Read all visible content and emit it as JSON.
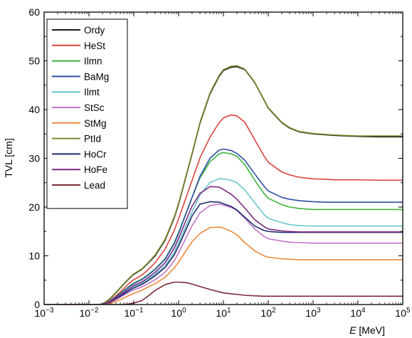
{
  "chart_data": {
    "type": "line",
    "xlabel_italic": "E",
    "xlabel_unit": " [MeV]",
    "ylabel": "TVL [cm]",
    "xscale": "log",
    "xlim": [
      0.001,
      100000
    ],
    "ylim": [
      0,
      60
    ],
    "yticks": [
      0,
      10,
      20,
      30,
      40,
      50,
      60
    ],
    "xtick_labels": [
      {
        "base": "10",
        "exp": "−3"
      },
      {
        "base": "10",
        "exp": "−2"
      },
      {
        "base": "10",
        "exp": "−1"
      },
      {
        "base": "10",
        "exp": "0"
      },
      {
        "base": "10",
        "exp": "1"
      },
      {
        "base": "10",
        "exp": "2"
      },
      {
        "base": "10",
        "exp": "3"
      },
      {
        "base": "10",
        "exp": "4"
      },
      {
        "base": "10",
        "exp": "5"
      }
    ],
    "grid": false,
    "legend_position": "top-left",
    "x": [
      0.001,
      0.0015,
      0.003,
      0.006,
      0.01,
      0.015,
      0.02,
      0.03,
      0.05,
      0.08,
      0.1,
      0.15,
      0.2,
      0.3,
      0.5,
      0.8,
      1,
      1.5,
      2,
      3,
      5,
      8,
      10,
      15,
      20,
      30,
      50,
      80,
      100,
      200,
      300,
      500,
      1000,
      2000,
      3000,
      5000,
      10000,
      30000,
      100000
    ],
    "series": [
      {
        "name": "Ordy",
        "color": "#1a1a1a",
        "values": [
          0,
          0,
          0,
          0,
          0,
          0,
          0.1,
          1.2,
          3.4,
          5.4,
          6.2,
          7.2,
          8.3,
          10.0,
          13.2,
          17.8,
          20.6,
          26.6,
          30.9,
          37.2,
          43.2,
          46.8,
          48.0,
          48.7,
          48.8,
          48.2,
          45.5,
          42.0,
          40.3,
          37.3,
          36.2,
          35.4,
          35.0,
          34.8,
          34.7,
          34.6,
          34.5,
          34.4,
          34.4
        ]
      },
      {
        "name": "HeSt",
        "color": "#d9443e",
        "values": [
          0,
          0,
          0,
          0,
          0,
          0,
          0,
          0.8,
          2.6,
          4.4,
          5.1,
          6.0,
          7.0,
          8.6,
          11.4,
          15.2,
          17.6,
          22.2,
          25.5,
          30.1,
          34.3,
          37.3,
          38.3,
          38.9,
          38.7,
          37.4,
          33.8,
          30.5,
          29.2,
          27.2,
          26.6,
          26.1,
          25.8,
          25.7,
          25.6,
          25.6,
          25.6,
          25.5,
          25.5
        ]
      },
      {
        "name": "Ilmn",
        "color": "#3db23d",
        "values": [
          0,
          0,
          0,
          0,
          0,
          0,
          0,
          0.7,
          2.3,
          3.8,
          4.4,
          5.2,
          6.0,
          7.3,
          9.4,
          12.7,
          14.8,
          19.0,
          22.0,
          26.0,
          29.3,
          30.9,
          31.2,
          30.9,
          30.4,
          28.7,
          25.5,
          22.8,
          21.8,
          20.5,
          20.0,
          19.7,
          19.5,
          19.5,
          19.5,
          19.5,
          19.5,
          19.5,
          19.5
        ]
      },
      {
        "name": "BaMg",
        "color": "#2f4fa0",
        "values": [
          0,
          0,
          0,
          0,
          0,
          0,
          0,
          0.7,
          2.2,
          3.7,
          4.3,
          5.1,
          5.9,
          7.2,
          9.3,
          12.5,
          14.6,
          18.9,
          22.0,
          26.3,
          30.0,
          31.7,
          31.9,
          31.6,
          31.0,
          29.6,
          26.8,
          24.3,
          23.3,
          22.0,
          21.6,
          21.3,
          21.1,
          21.0,
          21.0,
          21.0,
          21.0,
          21.0,
          21.0
        ]
      },
      {
        "name": "Ilmt",
        "color": "#6cc7cc",
        "values": [
          0,
          0,
          0,
          0,
          0,
          0,
          0,
          0.6,
          1.9,
          3.2,
          3.7,
          4.4,
          5.1,
          6.2,
          8.0,
          10.8,
          12.7,
          16.4,
          19.0,
          22.5,
          25.0,
          25.8,
          25.8,
          25.5,
          25.0,
          23.5,
          20.9,
          18.5,
          17.7,
          16.8,
          16.4,
          16.2,
          16.1,
          16.1,
          16.1,
          16.1,
          16.1,
          16.1,
          16.1
        ]
      },
      {
        "name": "StSc",
        "color": "#c277c6",
        "values": [
          0,
          0,
          0,
          0,
          0,
          0,
          0,
          0.4,
          1.5,
          2.6,
          3.0,
          3.6,
          4.2,
          5.1,
          6.6,
          9.0,
          10.6,
          13.9,
          16.2,
          18.8,
          20.3,
          20.6,
          20.4,
          19.9,
          19.3,
          17.7,
          15.5,
          14.0,
          13.5,
          13.0,
          12.8,
          12.7,
          12.6,
          12.6,
          12.6,
          12.6,
          12.6,
          12.6,
          12.6
        ]
      },
      {
        "name": "StMg",
        "color": "#ee8a3a",
        "values": [
          0,
          0,
          0,
          0,
          0,
          0,
          0,
          0.2,
          1.0,
          1.9,
          2.3,
          2.9,
          3.5,
          4.3,
          5.6,
          7.5,
          8.7,
          11.2,
          12.9,
          14.6,
          15.8,
          15.9,
          15.7,
          15.0,
          14.3,
          12.7,
          11.0,
          10.0,
          9.7,
          9.4,
          9.3,
          9.2,
          9.2,
          9.2,
          9.2,
          9.2,
          9.2,
          9.2,
          9.2
        ]
      },
      {
        "name": "PtId",
        "color": "#7f8a2e",
        "values": [
          0,
          0,
          0,
          0,
          0,
          0,
          0.1,
          1.3,
          3.5,
          5.5,
          6.3,
          7.3,
          8.4,
          10.2,
          13.4,
          18.0,
          20.8,
          26.8,
          31.1,
          37.4,
          43.4,
          47.0,
          48.2,
          48.9,
          49.0,
          48.3,
          45.6,
          42.1,
          40.4,
          37.4,
          36.3,
          35.5,
          35.1,
          34.9,
          34.8,
          34.7,
          34.6,
          34.6,
          34.6
        ]
      },
      {
        "name": "HoCr",
        "color": "#1f2a6e",
        "values": [
          0,
          0,
          0,
          0,
          0,
          0,
          0,
          0.5,
          1.7,
          2.9,
          3.4,
          4.1,
          4.8,
          5.9,
          7.6,
          10.2,
          12.0,
          15.6,
          18.2,
          20.6,
          21.1,
          21.0,
          20.7,
          20.1,
          19.4,
          17.9,
          16.1,
          15.2,
          15.0,
          14.8,
          14.8,
          14.8,
          14.8,
          14.8,
          14.8,
          14.8,
          14.8,
          14.8,
          14.8
        ]
      },
      {
        "name": "HoFe",
        "color": "#7a2a80",
        "values": [
          0,
          0,
          0,
          0,
          0,
          0,
          0,
          0.6,
          1.9,
          3.3,
          3.9,
          4.6,
          5.4,
          6.6,
          8.6,
          11.6,
          13.6,
          17.5,
          20.2,
          22.8,
          24.2,
          24.1,
          23.6,
          22.6,
          21.6,
          19.8,
          17.4,
          16.0,
          15.5,
          15.1,
          15.0,
          14.9,
          14.9,
          14.9,
          14.9,
          14.9,
          14.9,
          14.9,
          14.9
        ]
      },
      {
        "name": "Lead",
        "color": "#7d2a36",
        "values": [
          0,
          0,
          0,
          0,
          0,
          0,
          0,
          0,
          0,
          0.1,
          0.3,
          0.8,
          1.6,
          2.9,
          4.1,
          4.6,
          4.6,
          4.5,
          4.2,
          3.7,
          3.1,
          2.6,
          2.4,
          2.2,
          2.1,
          1.9,
          1.8,
          1.7,
          1.7,
          1.7,
          1.7,
          1.7,
          1.7,
          1.7,
          1.7,
          1.7,
          1.7,
          1.7,
          1.7
        ]
      }
    ]
  }
}
